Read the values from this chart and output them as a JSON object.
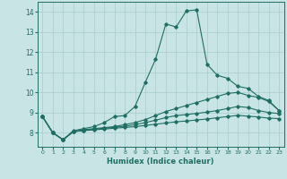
{
  "xlabel": "Humidex (Indice chaleur)",
  "xlim": [
    -0.5,
    23.5
  ],
  "ylim": [
    7.3,
    14.5
  ],
  "yticks": [
    8,
    9,
    10,
    11,
    12,
    13,
    14
  ],
  "xticks": [
    0,
    1,
    2,
    3,
    4,
    5,
    6,
    7,
    8,
    9,
    10,
    11,
    12,
    13,
    14,
    15,
    16,
    17,
    18,
    19,
    20,
    21,
    22,
    23
  ],
  "bg_color": "#c8e4e4",
  "grid_color": "#a8cccc",
  "line_color": "#1e6e64",
  "series": [
    [
      8.8,
      8.0,
      7.65,
      8.1,
      8.2,
      8.3,
      8.5,
      8.8,
      8.85,
      9.3,
      10.5,
      11.65,
      13.4,
      13.25,
      14.05,
      14.1,
      11.4,
      10.85,
      10.7,
      10.3,
      10.2,
      9.8,
      9.6,
      9.1
    ],
    [
      8.8,
      8.0,
      7.65,
      8.05,
      8.15,
      8.2,
      8.25,
      8.3,
      8.4,
      8.5,
      8.65,
      8.85,
      9.05,
      9.2,
      9.35,
      9.5,
      9.65,
      9.8,
      9.95,
      10.0,
      9.85,
      9.75,
      9.55,
      9.1
    ],
    [
      8.8,
      8.0,
      7.65,
      8.05,
      8.12,
      8.17,
      8.22,
      8.27,
      8.32,
      8.4,
      8.5,
      8.62,
      8.75,
      8.85,
      8.9,
      8.96,
      9.02,
      9.1,
      9.2,
      9.3,
      9.25,
      9.1,
      9.0,
      8.95
    ],
    [
      8.8,
      8.0,
      7.65,
      8.05,
      8.1,
      8.14,
      8.18,
      8.22,
      8.26,
      8.3,
      8.36,
      8.42,
      8.48,
      8.54,
      8.58,
      8.63,
      8.68,
      8.74,
      8.8,
      8.86,
      8.82,
      8.78,
      8.72,
      8.7
    ]
  ]
}
